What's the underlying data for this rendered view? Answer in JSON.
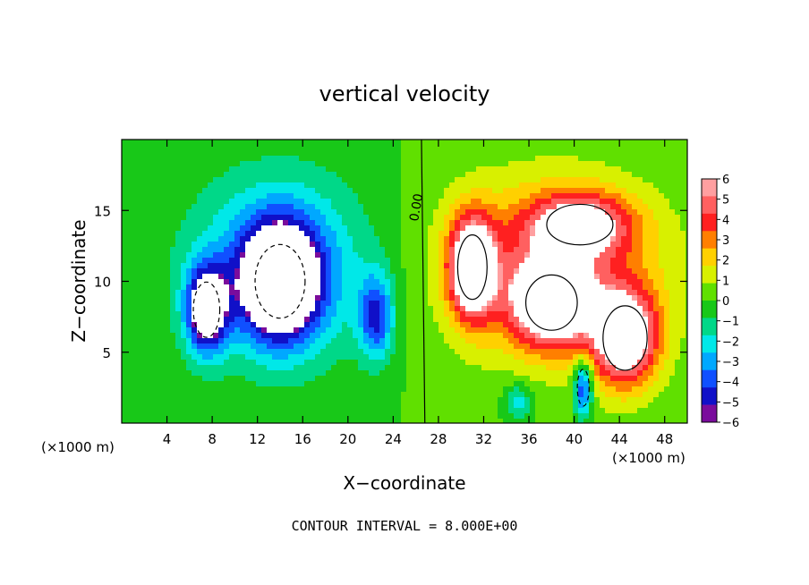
{
  "chart_data": {
    "type": "heatmap",
    "title": "vertical velocity",
    "xlabel": "X−coordinate",
    "ylabel": "Z−coordinate",
    "x_unit": "(×1000 m)",
    "x_unit_right": "(×1000 m)",
    "xlim": [
      0,
      50
    ],
    "ylim": [
      0,
      20
    ],
    "x_ticks": [
      4,
      8,
      12,
      16,
      20,
      24,
      28,
      32,
      36,
      40,
      44,
      48
    ],
    "y_ticks": [
      5,
      10,
      15
    ],
    "zero_contour_label": "0.00",
    "footer": "CONTOUR INTERVAL = 8.000E+00",
    "colorbar": {
      "labels": [
        "6",
        "5",
        "4",
        "3",
        "2",
        "1",
        "0",
        "−1",
        "−2",
        "−3",
        "−4",
        "−5",
        "−6"
      ],
      "colors": [
        "#ff9fa0",
        "#ff6060",
        "#ff2020",
        "#ff7f00",
        "#ffd000",
        "#d8f000",
        "#60e000",
        "#18c818",
        "#00d888",
        "#00e8e8",
        "#00a8ff",
        "#1050ff",
        "#1010c8",
        "#7a0c9c"
      ]
    },
    "features": [
      {
        "label": "downdraft",
        "x": 14,
        "z": 10,
        "w": -9,
        "sx": 3.4,
        "sz": 4.0
      },
      {
        "label": "downdraft",
        "x": 7.5,
        "z": 8,
        "w": -8,
        "sx": 1.8,
        "sz": 3.0
      },
      {
        "label": "downdraft",
        "x": 22.5,
        "z": 7.5,
        "w": -5,
        "sx": 1.5,
        "sz": 3.0
      },
      {
        "label": "downdraft ring",
        "x": 14,
        "z": 11,
        "w": -4,
        "sx": 8.0,
        "sz": 6.5
      },
      {
        "label": "updraft",
        "x": 31,
        "z": 11,
        "w": 9,
        "sx": 2.0,
        "sz": 3.5
      },
      {
        "label": "updraft",
        "x": 38,
        "z": 8.5,
        "w": 8,
        "sx": 3.5,
        "sz": 3.0
      },
      {
        "label": "updraft",
        "x": 44.5,
        "z": 6,
        "w": 8,
        "sx": 3.0,
        "sz": 3.5
      },
      {
        "label": "updraft",
        "x": 40.5,
        "z": 14,
        "w": 6,
        "sx": 4.5,
        "sz": 2.2
      },
      {
        "label": "updraft ring",
        "x": 38,
        "z": 11,
        "w": 4,
        "sx": 10.0,
        "sz": 6.5
      },
      {
        "label": "downdraft",
        "x": 40.8,
        "z": 2.5,
        "w": -6,
        "sx": 0.8,
        "sz": 2.0
      },
      {
        "label": "downdraft",
        "x": 35,
        "z": 1.5,
        "w": -3,
        "sx": 1.2,
        "sz": 1.2
      }
    ]
  }
}
